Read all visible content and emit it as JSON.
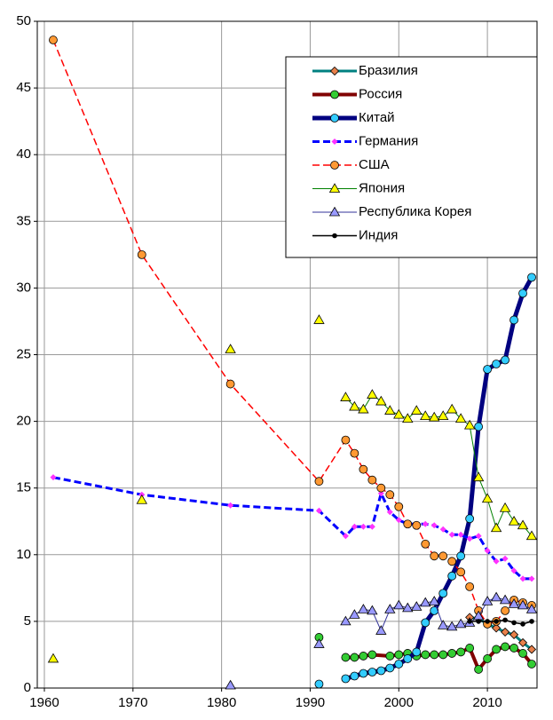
{
  "chart_data": {
    "type": "line",
    "xlim": [
      1959.2,
      2015.6
    ],
    "xticks": [
      1960,
      1970,
      1980,
      1990,
      2000,
      2010
    ],
    "ylim": [
      0,
      50
    ],
    "yticks": [
      0,
      5,
      10,
      15,
      20,
      25,
      30,
      35,
      40,
      45,
      50
    ],
    "grid": true,
    "legend": "upper right",
    "series": [
      {
        "name": "Бразилия",
        "color": "#008080",
        "marker": "diamond",
        "marker_color": "#e8804a",
        "line_width": 3,
        "dash": false,
        "x": [
          2008,
          2009,
          2010,
          2011,
          2012,
          2013,
          2014,
          2015
        ],
        "values": [
          5.3,
          5.2,
          4.8,
          4.5,
          4.2,
          4.0,
          3.4,
          2.9
        ]
      },
      {
        "name": "Россия",
        "color": "#800000",
        "marker": "circle",
        "marker_color": "#33cc33",
        "line_width": 4,
        "dash": false,
        "x": [
          1991,
          1992,
          1994,
          1995,
          1996,
          1997,
          1999,
          2000,
          2001,
          2002,
          2003,
          2004,
          2005,
          2006,
          2007,
          2008,
          2009,
          2010,
          2011,
          2012,
          2013,
          2014,
          2015
        ],
        "values": [
          3.8,
          null,
          2.3,
          2.3,
          2.4,
          2.5,
          2.4,
          2.5,
          2.6,
          2.4,
          2.5,
          2.5,
          2.5,
          2.6,
          2.7,
          3.0,
          1.4,
          2.2,
          2.9,
          3.1,
          3.0,
          2.6,
          1.8
        ]
      },
      {
        "name": "Китай",
        "color": "#000080",
        "marker": "circle",
        "marker_color": "#33ccff",
        "line_width": 5,
        "dash": false,
        "x": [
          1991,
          1992,
          1994,
          1995,
          1996,
          1997,
          1998,
          1999,
          2000,
          2001,
          2002,
          2003,
          2004,
          2005,
          2006,
          2007,
          2008,
          2009,
          2010,
          2011,
          2012,
          2013,
          2014,
          2015
        ],
        "values": [
          0.3,
          null,
          0.7,
          0.9,
          1.1,
          1.2,
          1.3,
          1.5,
          1.8,
          2.2,
          2.7,
          4.9,
          5.8,
          7.1,
          8.4,
          9.9,
          12.7,
          19.6,
          23.9,
          24.3,
          24.6,
          27.6,
          29.6,
          30.8
        ]
      },
      {
        "name": "Германия",
        "color": "#0000ff",
        "marker": "diamond",
        "marker_color": "#ff33ff",
        "line_width": 3,
        "dash": true,
        "x": [
          1961,
          1971,
          1981,
          1991,
          1994,
          1995,
          1996,
          1997,
          1998,
          1999,
          2000,
          2001,
          2002,
          2003,
          2004,
          2005,
          2006,
          2007,
          2008,
          2009,
          2010,
          2011,
          2012,
          2013,
          2014,
          2015
        ],
        "values": [
          15.8,
          14.5,
          13.7,
          13.3,
          11.4,
          12.1,
          12.1,
          12.1,
          14.6,
          13.2,
          12.6,
          12.3,
          12.3,
          12.3,
          12.2,
          11.9,
          11.5,
          11.5,
          11.2,
          11.4,
          10.3,
          9.5,
          9.7,
          8.8,
          8.2,
          8.2
        ]
      },
      {
        "name": "США",
        "color": "#ff0000",
        "marker": "circle",
        "marker_color": "#ff9933",
        "line_width": 1.5,
        "dash": true,
        "x": [
          1961,
          1971,
          1981,
          1991,
          1994,
          1995,
          1996,
          1997,
          1998,
          1999,
          2000,
          2001,
          2002,
          2003,
          2004,
          2005,
          2006,
          2007,
          2008,
          2009,
          2010,
          2011,
          2012,
          2013,
          2014,
          2015
        ],
        "values": [
          48.6,
          32.5,
          22.8,
          15.5,
          18.6,
          17.6,
          16.4,
          15.6,
          15.0,
          14.5,
          13.6,
          12.3,
          12.2,
          10.8,
          9.9,
          9.9,
          9.5,
          8.7,
          7.6,
          5.8,
          4.8,
          5.0,
          5.8,
          6.6,
          6.4,
          6.2
        ]
      },
      {
        "name": "Япония",
        "color": "#008000",
        "marker": "triangle",
        "marker_color": "#ffff00",
        "line_width": 1,
        "dash": false,
        "x": [
          1961,
          1965,
          1971,
          1975,
          1981,
          1985,
          1991,
          1992,
          1994,
          1995,
          1996,
          1997,
          1998,
          1999,
          2000,
          2001,
          2002,
          2003,
          2004,
          2005,
          2006,
          2007,
          2008,
          2009,
          2010,
          2011,
          2012,
          2013,
          2014,
          2015
        ],
        "values": [
          2.2,
          null,
          14.1,
          null,
          25.4,
          null,
          27.6,
          null,
          21.8,
          21.1,
          20.9,
          22.0,
          21.5,
          20.8,
          20.5,
          20.2,
          20.8,
          20.4,
          20.3,
          20.4,
          20.9,
          20.2,
          19.7,
          15.8,
          14.2,
          12.0,
          13.5,
          12.5,
          12.2,
          11.4
        ]
      },
      {
        "name": "Республика Корея",
        "color": "#333399",
        "marker": "triangle",
        "marker_color": "#9999ff",
        "line_width": 1,
        "dash": false,
        "x": [
          1981,
          1985,
          1991,
          1992,
          1994,
          1995,
          1996,
          1997,
          1998,
          1999,
          2000,
          2001,
          2002,
          2003,
          2004,
          2005,
          2006,
          2007,
          2008,
          2009,
          2010,
          2011,
          2012,
          2013,
          2014,
          2015
        ],
        "values": [
          0.2,
          null,
          3.3,
          null,
          5.0,
          5.5,
          5.9,
          5.8,
          4.3,
          5.9,
          6.2,
          6.0,
          6.1,
          6.4,
          6.5,
          4.7,
          4.6,
          4.8,
          4.9,
          5.4,
          6.5,
          6.8,
          6.6,
          6.3,
          6.2,
          5.9
        ]
      },
      {
        "name": "Индия",
        "color": "#000000",
        "marker": "dot",
        "marker_color": "#000000",
        "line_width": 1.5,
        "dash": false,
        "x": [
          2008,
          2009,
          2010,
          2011,
          2012,
          2013,
          2014,
          2015
        ],
        "values": [
          5.0,
          5.0,
          5.0,
          5.0,
          5.1,
          4.9,
          4.8,
          5.0
        ]
      }
    ]
  }
}
